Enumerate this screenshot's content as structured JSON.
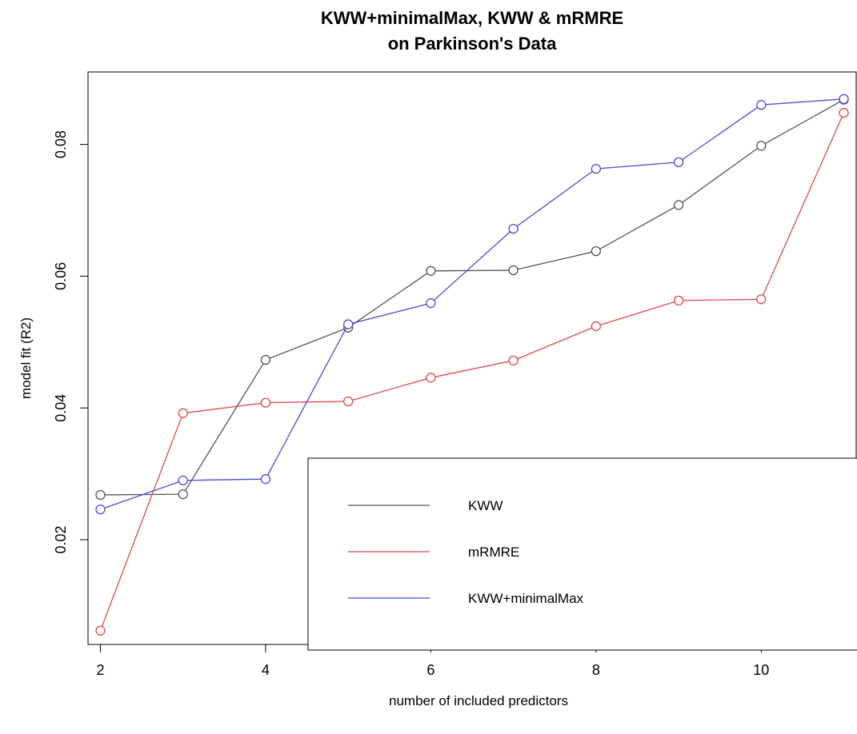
{
  "chart_data": {
    "type": "line",
    "title": [
      "KWW+minimalMax, KWW & mRMRE",
      "on Parkinson's Data"
    ],
    "xlabel": "number of included predictors",
    "ylabel": "model fit (R2)",
    "xlim": [
      1.85,
      11.15
    ],
    "ylim": [
      0.0041,
      0.091
    ],
    "x_ticks": [
      2,
      4,
      6,
      8,
      10
    ],
    "y_ticks": [
      0.02,
      0.04,
      0.06,
      0.08
    ],
    "x_tick_labels": [
      "2",
      "4",
      "6",
      "8",
      "10"
    ],
    "y_tick_labels": [
      "0.02",
      "0.04",
      "0.06",
      "0.08"
    ],
    "x": [
      2,
      3,
      4,
      5,
      6,
      7,
      8,
      9,
      10,
      11
    ],
    "series": [
      {
        "name": "KWW",
        "color": "#555555",
        "values": [
          0.0268,
          0.0269,
          0.0473,
          0.0522,
          0.0608,
          0.0609,
          0.0638,
          0.0708,
          0.0798,
          0.0868
        ]
      },
      {
        "name": "mRMRE",
        "color": "#e04848",
        "values": [
          0.0062,
          0.0392,
          0.0408,
          0.041,
          0.0446,
          0.0472,
          0.0524,
          0.0563,
          0.0565,
          0.0848
        ]
      },
      {
        "name": "KWW+minimalMax",
        "color": "#4a4ae0",
        "values": [
          0.0246,
          0.029,
          0.0292,
          0.0527,
          0.0559,
          0.0672,
          0.0763,
          0.0773,
          0.086,
          0.0869
        ]
      }
    ],
    "grid": false,
    "legend_position": "bottom-right"
  }
}
